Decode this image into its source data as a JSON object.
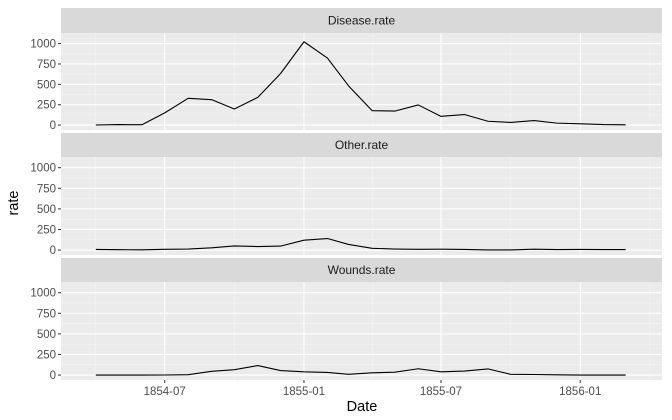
{
  "colors": {
    "panel_bg": "#ebebeb",
    "strip_bg": "#d9d9d9",
    "grid_major": "#ffffff",
    "grid_minor": "#f5f5f5",
    "line": "#000000",
    "tick": "#333333"
  },
  "chart_data": {
    "type": "line",
    "layout": "facet_wrap (3 rows, 1 column)",
    "xlabel": "Date",
    "ylabel": "rate",
    "grid": true,
    "legend": "none",
    "xlim": [
      "1854-02-14",
      "1856-04-18"
    ],
    "ylim": [
      -60,
      1130
    ],
    "x_ticks": [
      {
        "date": "1854-07-01",
        "label": "1854-07"
      },
      {
        "date": "1855-01-01",
        "label": "1855-01"
      },
      {
        "date": "1855-07-01",
        "label": "1855-07"
      },
      {
        "date": "1856-01-01",
        "label": "1856-01"
      }
    ],
    "y_ticks": [
      {
        "value": 0,
        "label": "0"
      },
      {
        "value": 250,
        "label": "250"
      },
      {
        "value": 500,
        "label": "500"
      },
      {
        "value": 750,
        "label": "750"
      },
      {
        "value": 1000,
        "label": "1000"
      }
    ],
    "x": [
      "1854-04-01",
      "1854-05-01",
      "1854-06-01",
      "1854-07-01",
      "1854-08-01",
      "1854-09-01",
      "1854-10-01",
      "1854-11-01",
      "1854-12-01",
      "1855-01-01",
      "1855-02-01",
      "1855-03-01",
      "1855-04-01",
      "1855-05-01",
      "1855-06-01",
      "1855-07-01",
      "1855-08-01",
      "1855-09-01",
      "1855-10-01",
      "1855-11-01",
      "1855-12-01",
      "1856-01-01",
      "1856-02-01",
      "1856-03-01"
    ],
    "series": [
      {
        "name": "Disease.rate",
        "values": [
          1.4,
          6.2,
          4.6,
          150,
          328.5,
          312.2,
          197,
          340.6,
          631.5,
          1022.8,
          822.8,
          480.3,
          177.5,
          171.8,
          247.6,
          107.5,
          129.9,
          47.5,
          32.8,
          56.1,
          24.3,
          15.5,
          6.2,
          3.9
        ]
      },
      {
        "name": "Other.rate",
        "values": [
          7,
          4.6,
          2.5,
          9.6,
          11.9,
          27.7,
          50.1,
          42.8,
          48,
          120,
          140.1,
          68.6,
          21.2,
          12.5,
          9.6,
          10.5,
          7.2,
          1.7,
          1.7,
          10.1,
          6.2,
          7.5,
          6.6,
          5.4
        ]
      },
      {
        "name": "Wounds.rate",
        "values": [
          0,
          0,
          0,
          0.7,
          4.4,
          45.7,
          65.3,
          115.6,
          54.5,
          39.9,
          31.7,
          9.4,
          27.8,
          34.6,
          76.7,
          39,
          48,
          74.9,
          9.4,
          6.7,
          2.8,
          0,
          0,
          0
        ]
      }
    ]
  }
}
